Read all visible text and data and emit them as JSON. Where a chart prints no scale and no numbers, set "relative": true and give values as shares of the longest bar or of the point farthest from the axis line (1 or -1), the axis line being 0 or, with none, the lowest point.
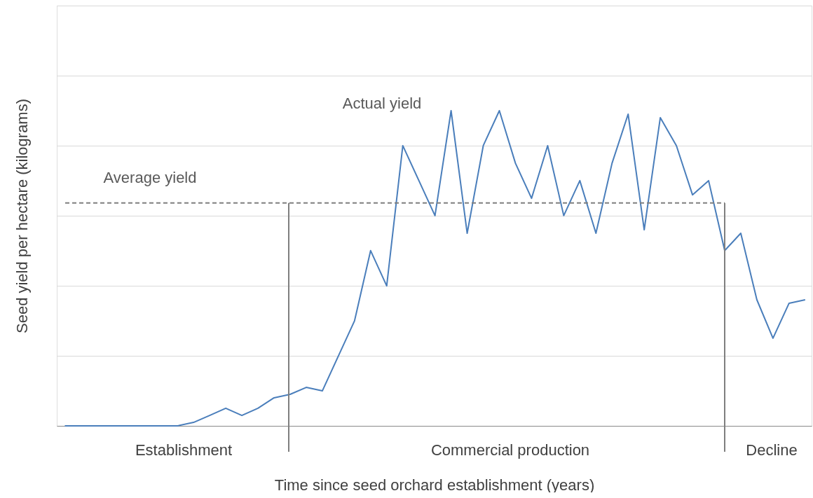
{
  "chart_data": {
    "type": "line",
    "relative": true,
    "xlabel": "Time since seed orchard establishment (years)",
    "ylabel": "Seed yield per hectare (kilograms)",
    "categories": [
      null,
      null,
      null,
      null,
      null,
      null,
      null,
      null,
      null,
      null,
      null,
      null,
      null,
      null,
      null,
      null,
      null,
      null,
      null,
      null,
      null,
      null,
      null,
      null,
      null,
      null,
      null,
      null,
      null,
      null,
      null,
      null,
      null,
      null,
      null,
      null,
      null,
      null,
      null,
      null,
      null,
      null,
      null,
      null,
      null,
      null,
      null
    ],
    "series": [
      {
        "color": "#4a7ebb",
        "values": [
          0,
          0,
          0,
          0,
          0,
          0,
          0,
          0,
          0.011,
          0.033,
          0.056,
          0.033,
          0.056,
          0.089,
          0.1,
          0.122,
          0.111,
          0.222,
          0.333,
          0.556,
          0.444,
          0.889,
          0.778,
          0.667,
          1,
          0.611,
          0.889,
          1,
          0.833,
          0.722,
          0.889,
          0.667,
          0.778,
          0.611,
          0.833,
          0.989,
          0.622,
          0.978,
          0.889,
          0.733,
          0.778,
          0.556,
          0.611,
          0.4,
          0.278,
          0.389,
          0.4
        ]
      }
    ],
    "ref_lines": [
      {
        "axis": "y",
        "value": 0.707,
        "label": "Average yield",
        "color": "#7f7f7f",
        "line_style": "dashed"
      }
    ],
    "annotations": [
      "Actual yield",
      "Establishment",
      "Commercial production",
      "Decline"
    ],
    "grid": "y",
    "marker": "none",
    "line_style": "solid"
  }
}
